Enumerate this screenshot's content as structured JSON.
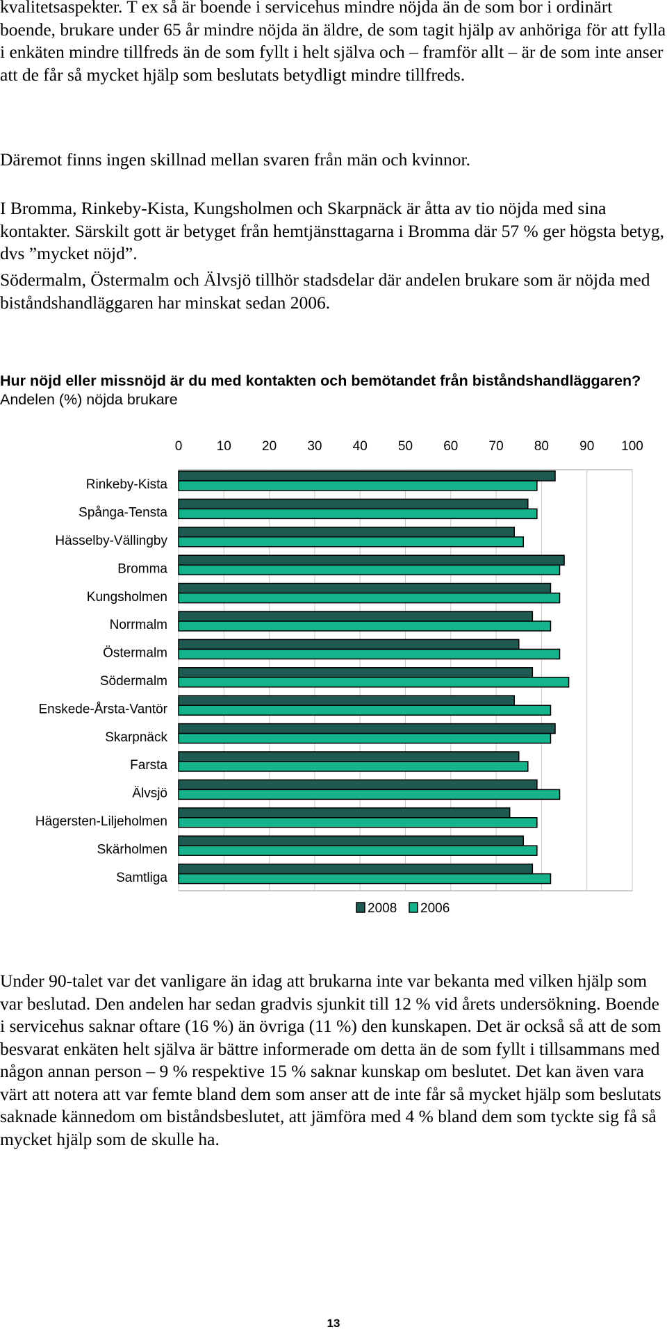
{
  "paragraphs": {
    "p1": "kvalitetsaspekter. T ex så är boende i servicehus mindre nöjda än de som bor i ordinärt boende, brukare under 65 år mindre nöjda än äldre, de som tagit hjälp av anhöriga för att fylla i enkäten mindre tillfreds än de som fyllt i helt själva och – framför allt – är de som inte anser att de får så mycket hjälp som beslutats betydligt mindre tillfreds.",
    "p2": "Däremot finns ingen skillnad mellan svaren från män och kvinnor.",
    "p3": "I Bromma, Rinkeby-Kista, Kungsholmen och Skarpnäck är åtta av tio nöjda med sina kontakter. Särskilt gott är betyget från hemtjänsttagarna i Bromma där 57 % ger högsta betyg, dvs  ”mycket nöjd”.",
    "p4": "Södermalm, Östermalm och Älvsjö tillhör stadsdelar där andelen brukare som är nöjda med biståndshandläggaren har minskat sedan 2006.",
    "p5": "Under 90-talet var det vanligare än idag att brukarna inte var bekanta med vilken hjälp som var beslutad. Den andelen har sedan gradvis sjunkit till 12 % vid årets undersökning. Boende i servicehus saknar oftare (16 %) än övriga (11 %) den kunskapen. Det är också så att de som besvarat enkäten helt själva är bättre informerade om detta än de som fyllt i tillsammans med någon annan person – 9 % respektive 15 % saknar kunskap om beslutet. Det kan även vara värt att notera att var femte bland dem som anser att de inte får så mycket hjälp som beslutats saknade kännedom om biståndsbeslutet, att jämföra med 4 % bland dem som tyckte sig få så mycket hjälp som de skulle ha."
  },
  "chart_heading": {
    "bold": "Hur nöjd eller missnöjd är du med kontakten och bemötandet från biståndshandläggaren?",
    "normal": " Andelen (%) nöjda brukare"
  },
  "chart_data": {
    "type": "bar",
    "orientation": "horizontal",
    "title": "Hur nöjd eller missnöjd är du med kontakten och bemötandet från biståndshandläggaren?",
    "subtitle": "Andelen (%) nöjda brukare",
    "xlim": [
      0,
      100
    ],
    "x_ticks": [
      0,
      10,
      20,
      30,
      40,
      50,
      60,
      70,
      80,
      90,
      100
    ],
    "x_axis_position": "top",
    "grid": true,
    "legend_position": "bottom-right",
    "categories": [
      "Rinkeby-Kista",
      "Spånga-Tensta",
      "Hässelby-Vällingby",
      "Bromma",
      "Kungsholmen",
      "Norrmalm",
      "Östermalm",
      "Södermalm",
      "Enskede-Årsta-Vantör",
      "Skarpnäck",
      "Farsta",
      "Älvsjö",
      "Hägersten-Liljeholmen",
      "Skärholmen",
      "Samtliga"
    ],
    "series": [
      {
        "name": "2008",
        "color": "#1e5a52",
        "values": [
          83,
          77,
          74,
          85,
          82,
          78,
          75,
          78,
          74,
          83,
          75,
          79,
          73,
          76,
          78
        ]
      },
      {
        "name": "2006",
        "color": "#14b38c",
        "values": [
          79,
          79,
          76,
          84,
          84,
          82,
          84,
          86,
          82,
          82,
          77,
          84,
          79,
          79,
          82
        ]
      }
    ]
  },
  "page_number": "13"
}
